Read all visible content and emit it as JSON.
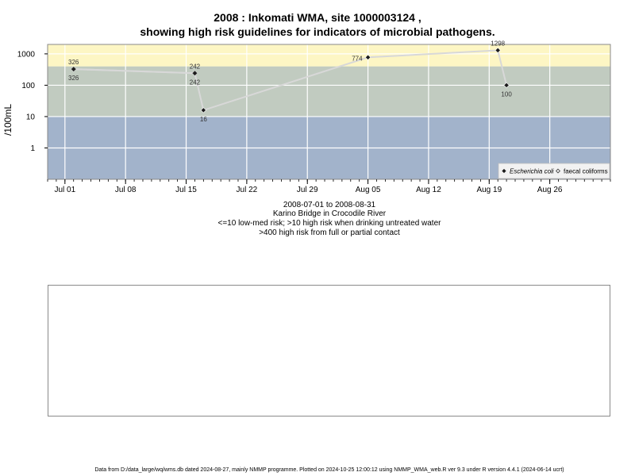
{
  "chart_data": {
    "type": "scatter",
    "title_lines": [
      "2008 : Inkomati WMA, site 1000003124 ,",
      "showing high risk guidelines for indicators of microbial pathogens."
    ],
    "subtitle_lines": [
      "2008-07-01 to 2008-08-31",
      "Karino Bridge in Crocodile River",
      "<=10 low-med risk; >10 high risk when drinking untreated water",
      ">400 high risk from full or partial contact"
    ],
    "ylabel": "/100mL",
    "y_scale": "log",
    "ylim": [
      0.1,
      2000
    ],
    "xlim": [
      "2008-06-29",
      "2008-09-02"
    ],
    "y_ticks": [
      {
        "value": 1,
        "label": "1"
      },
      {
        "value": 10,
        "label": "10"
      },
      {
        "value": 100,
        "label": "100"
      },
      {
        "value": 1000,
        "label": "1000"
      }
    ],
    "x_ticks": [
      {
        "date": "2008-07-01",
        "label": "Jul 01"
      },
      {
        "date": "2008-07-08",
        "label": "Jul 08"
      },
      {
        "date": "2008-07-15",
        "label": "Jul 15"
      },
      {
        "date": "2008-07-22",
        "label": "Jul 22"
      },
      {
        "date": "2008-07-29",
        "label": "Jul 29"
      },
      {
        "date": "2008-08-05",
        "label": "Aug 05"
      },
      {
        "date": "2008-08-12",
        "label": "Aug 12"
      },
      {
        "date": "2008-08-19",
        "label": "Aug 19"
      },
      {
        "date": "2008-08-26",
        "label": "Aug 26"
      }
    ],
    "risk_bands": [
      {
        "from": 0.1,
        "to": 10,
        "color": "#a2b3cb"
      },
      {
        "from": 10,
        "to": 400,
        "color": "#c1cbc0"
      },
      {
        "from": 400,
        "to": 2000,
        "color": "#fdf6c4"
      }
    ],
    "series": [
      {
        "name": "Escherichia coli",
        "marker": "filled-diamond",
        "points": [
          {
            "date": "2008-07-02",
            "value": 326,
            "label": "326",
            "label_pos": "below"
          },
          {
            "date": "2008-07-16",
            "value": 242,
            "label": "242",
            "label_pos": "below"
          },
          {
            "date": "2008-07-17",
            "value": 16,
            "label": "16",
            "label_pos": "below"
          },
          {
            "date": "2008-08-05",
            "value": 774,
            "label": "774",
            "label_pos": "left"
          },
          {
            "date": "2008-08-20",
            "value": 1298,
            "label": "1298",
            "label_pos": "above"
          },
          {
            "date": "2008-08-21",
            "value": 100,
            "label": "100",
            "label_pos": "below"
          }
        ]
      },
      {
        "name": "faecal coliforms",
        "marker": "open-diamond",
        "points": [
          {
            "date": "2008-07-02",
            "value": 326,
            "label": "326",
            "label_pos": "above"
          },
          {
            "date": "2008-07-16",
            "value": 242,
            "label": "242",
            "label_pos": "above"
          }
        ]
      }
    ],
    "line_color": "#d8d8d8",
    "legend_position": "bottom-right",
    "grid": true
  },
  "footer": "Data from D:/data_large/wq/wms.db dated 2024-08-27, mainly NMMP programme. Plotted on 2024-10-25 12:00:12 using NMMP_WMA_web.R ver 9.3 under R version 4.4.1 (2024-06-14 ucrt)"
}
